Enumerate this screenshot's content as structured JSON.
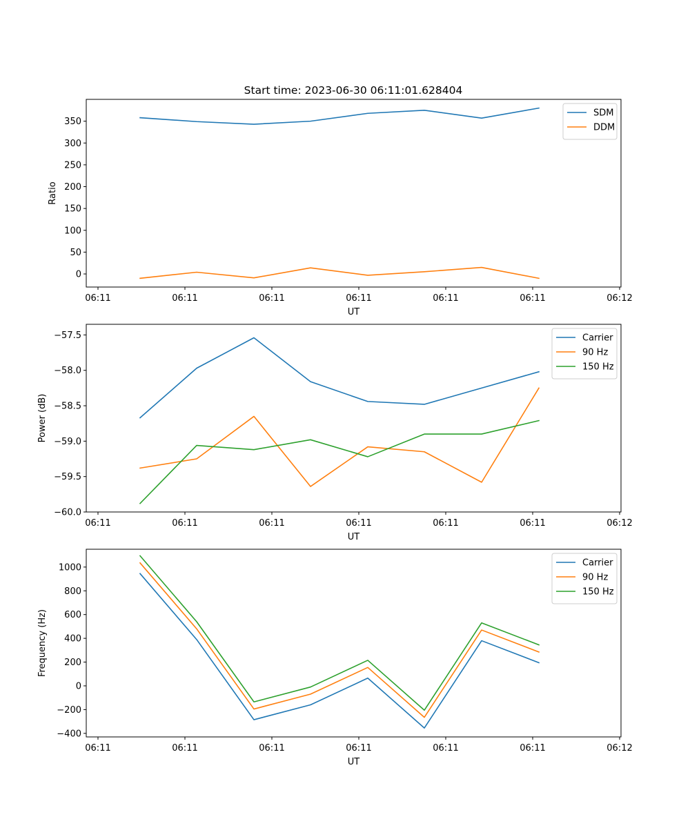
{
  "title": "Start time: 2023-06-30 06:11:01.628404",
  "chart_data": [
    {
      "type": "line",
      "xlabel": "UT",
      "ylabel": "Ratio",
      "x_tick_labels": [
        "06:11",
        "06:11",
        "06:11",
        "06:11",
        "06:11",
        "06:11",
        "06:12"
      ],
      "y_ticks": [
        0,
        50,
        100,
        150,
        200,
        250,
        300,
        350
      ],
      "ylim": [
        -30,
        400
      ],
      "legend_position": "upper right",
      "series": [
        {
          "name": "SDM",
          "color": "#1f77b4",
          "values": [
            358,
            349,
            343,
            350,
            368,
            375,
            357,
            380
          ]
        },
        {
          "name": "DDM",
          "color": "#ff7f0e",
          "values": [
            -10,
            4,
            -9,
            14,
            -3,
            5,
            15,
            -10
          ]
        }
      ]
    },
    {
      "type": "line",
      "xlabel": "UT",
      "ylabel": "Power (dB)",
      "x_tick_labels": [
        "06:11",
        "06:11",
        "06:11",
        "06:11",
        "06:11",
        "06:11",
        "06:12"
      ],
      "y_ticks": [
        -60.0,
        -59.5,
        -59.0,
        -58.5,
        -58.0,
        -57.5
      ],
      "y_tick_labels": [
        "−60.0",
        "−59.5",
        "−59.0",
        "−58.5",
        "−58.0",
        "−57.5"
      ],
      "ylim": [
        -60.0,
        -57.35
      ],
      "legend_position": "upper right",
      "series": [
        {
          "name": "Carrier",
          "color": "#1f77b4",
          "values": [
            -58.67,
            -57.97,
            -57.54,
            -58.16,
            -58.44,
            -58.48,
            -58.25,
            -58.02
          ]
        },
        {
          "name": "90 Hz",
          "color": "#ff7f0e",
          "values": [
            -59.38,
            -59.25,
            -58.65,
            -59.64,
            -59.08,
            -59.15,
            -59.58,
            -58.25
          ]
        },
        {
          "name": "150 Hz",
          "color": "#2ca02c",
          "values": [
            -59.88,
            -59.06,
            -59.12,
            -58.98,
            -59.22,
            -58.9,
            -58.9,
            -58.71
          ]
        }
      ]
    },
    {
      "type": "line",
      "xlabel": "UT",
      "ylabel": "Frequency (Hz)",
      "x_tick_labels": [
        "06:11",
        "06:11",
        "06:11",
        "06:11",
        "06:11",
        "06:11",
        "06:12"
      ],
      "y_ticks": [
        -400,
        -200,
        0,
        200,
        400,
        600,
        800,
        1000
      ],
      "y_tick_labels": [
        "−400",
        "−200",
        "0",
        "200",
        "400",
        "600",
        "800",
        "1000"
      ],
      "ylim": [
        -430,
        1150
      ],
      "legend_position": "upper right",
      "series": [
        {
          "name": "Carrier",
          "color": "#1f77b4",
          "values": [
            945,
            390,
            -285,
            -160,
            65,
            -355,
            380,
            195
          ]
        },
        {
          "name": "90 Hz",
          "color": "#ff7f0e",
          "values": [
            1035,
            480,
            -195,
            -70,
            155,
            -265,
            470,
            285
          ]
        },
        {
          "name": "150 Hz",
          "color": "#2ca02c",
          "values": [
            1095,
            540,
            -135,
            -10,
            215,
            -205,
            530,
            345
          ]
        }
      ]
    }
  ]
}
